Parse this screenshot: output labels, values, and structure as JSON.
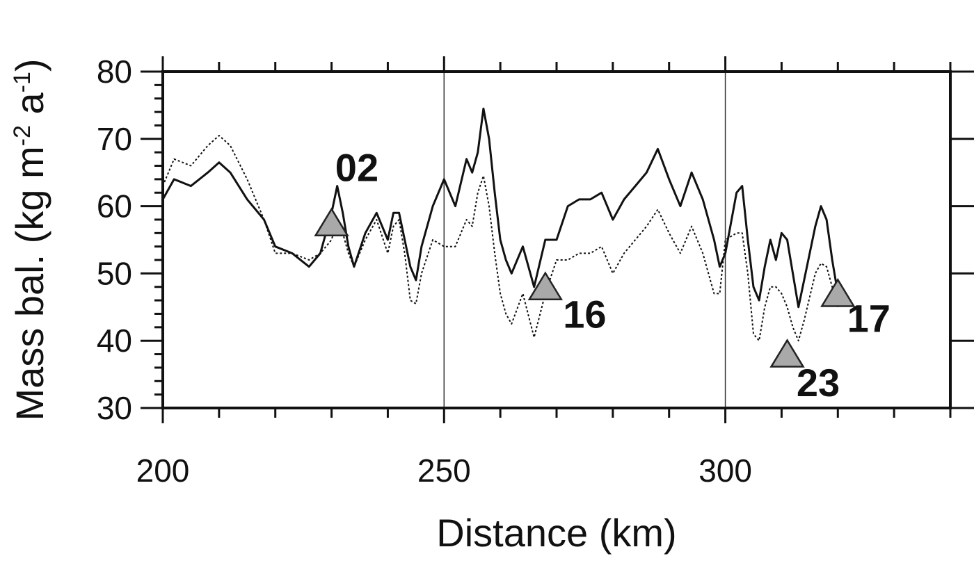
{
  "chart_data": {
    "type": "line",
    "xlabel": "Distance (km)",
    "ylabel_parts": [
      "Mass bal. (kg m",
      "-2",
      " a",
      "-1",
      ")"
    ],
    "xlim": [
      200,
      340
    ],
    "ylim": [
      30,
      80
    ],
    "x_ticks": [
      200,
      250,
      300
    ],
    "y_ticks": [
      30,
      40,
      50,
      60,
      70,
      80
    ],
    "grid_x": [
      250,
      300
    ],
    "series": [
      {
        "style": "solid",
        "points": [
          [
            200,
            61
          ],
          [
            202,
            64
          ],
          [
            205,
            63
          ],
          [
            208,
            65
          ],
          [
            210,
            66.5
          ],
          [
            212,
            65
          ],
          [
            215,
            61
          ],
          [
            218,
            58
          ],
          [
            220,
            54
          ],
          [
            223,
            53
          ],
          [
            226,
            51
          ],
          [
            228,
            53
          ],
          [
            230,
            59
          ],
          [
            231,
            63
          ],
          [
            232,
            59
          ],
          [
            233,
            54
          ],
          [
            234,
            51
          ],
          [
            236,
            56
          ],
          [
            238,
            59
          ],
          [
            240,
            55
          ],
          [
            241,
            59
          ],
          [
            242,
            59
          ],
          [
            243,
            55
          ],
          [
            244,
            51
          ],
          [
            245,
            49
          ],
          [
            246,
            54
          ],
          [
            248,
            60
          ],
          [
            250,
            64
          ],
          [
            252,
            60
          ],
          [
            254,
            67
          ],
          [
            255,
            65
          ],
          [
            256,
            68
          ],
          [
            257,
            74.5
          ],
          [
            258,
            70
          ],
          [
            259,
            62
          ],
          [
            260,
            55
          ],
          [
            261,
            52
          ],
          [
            262,
            50
          ],
          [
            264,
            54
          ],
          [
            266,
            48
          ],
          [
            268,
            55
          ],
          [
            270,
            55
          ],
          [
            272,
            60
          ],
          [
            274,
            61
          ],
          [
            276,
            61
          ],
          [
            278,
            62
          ],
          [
            280,
            58
          ],
          [
            282,
            61
          ],
          [
            284,
            63
          ],
          [
            286,
            65
          ],
          [
            288,
            68.5
          ],
          [
            290,
            64
          ],
          [
            292,
            60
          ],
          [
            294,
            65
          ],
          [
            296,
            61
          ],
          [
            298,
            55
          ],
          [
            299,
            51
          ],
          [
            300,
            53
          ],
          [
            302,
            62
          ],
          [
            303,
            63
          ],
          [
            304,
            55
          ],
          [
            305,
            48
          ],
          [
            306,
            46
          ],
          [
            307,
            51
          ],
          [
            308,
            55
          ],
          [
            309,
            52
          ],
          [
            310,
            56
          ],
          [
            311,
            55
          ],
          [
            312,
            50
          ],
          [
            313,
            45
          ],
          [
            314,
            49
          ],
          [
            316,
            57
          ],
          [
            317,
            60
          ],
          [
            318,
            58
          ],
          [
            319,
            52
          ],
          [
            320,
            47
          ]
        ]
      },
      {
        "style": "dotted",
        "points": [
          [
            200,
            63
          ],
          [
            202,
            67
          ],
          [
            205,
            66
          ],
          [
            208,
            69
          ],
          [
            210,
            70.5
          ],
          [
            212,
            69
          ],
          [
            215,
            64
          ],
          [
            218,
            58
          ],
          [
            220,
            53
          ],
          [
            223,
            53
          ],
          [
            226,
            52
          ],
          [
            228,
            53
          ],
          [
            230,
            55
          ],
          [
            231,
            58
          ],
          [
            232,
            56
          ],
          [
            233,
            53
          ],
          [
            234,
            51
          ],
          [
            236,
            55
          ],
          [
            238,
            58
          ],
          [
            240,
            53
          ],
          [
            241,
            57
          ],
          [
            242,
            58
          ],
          [
            243,
            53
          ],
          [
            244,
            46
          ],
          [
            245,
            45.5
          ],
          [
            246,
            50
          ],
          [
            248,
            55
          ],
          [
            250,
            54
          ],
          [
            252,
            54
          ],
          [
            254,
            58
          ],
          [
            255,
            57
          ],
          [
            256,
            62
          ],
          [
            257,
            64.5
          ],
          [
            258,
            60
          ],
          [
            259,
            53
          ],
          [
            260,
            47
          ],
          [
            261,
            44
          ],
          [
            262,
            42.5
          ],
          [
            264,
            47
          ],
          [
            266,
            40.5
          ],
          [
            268,
            47
          ],
          [
            270,
            52
          ],
          [
            272,
            52
          ],
          [
            274,
            53
          ],
          [
            276,
            53
          ],
          [
            278,
            54
          ],
          [
            280,
            50
          ],
          [
            282,
            53
          ],
          [
            284,
            55
          ],
          [
            286,
            57
          ],
          [
            288,
            59.5
          ],
          [
            290,
            56
          ],
          [
            292,
            53
          ],
          [
            294,
            57
          ],
          [
            296,
            53
          ],
          [
            298,
            47
          ],
          [
            299,
            47
          ],
          [
            300,
            55
          ],
          [
            302,
            56
          ],
          [
            303,
            56
          ],
          [
            304,
            50
          ],
          [
            305,
            41
          ],
          [
            306,
            40
          ],
          [
            307,
            45
          ],
          [
            308,
            48
          ],
          [
            309,
            48
          ],
          [
            310,
            47
          ],
          [
            311,
            45
          ],
          [
            312,
            42
          ],
          [
            313,
            40
          ],
          [
            314,
            43
          ],
          [
            316,
            50
          ],
          [
            317,
            51.5
          ],
          [
            318,
            51
          ],
          [
            319,
            48
          ],
          [
            320,
            45
          ]
        ]
      }
    ],
    "markers": [
      {
        "label": "02",
        "x": 230,
        "y": 57.5,
        "label_x": 234.5,
        "label_y": 65.8
      },
      {
        "label": "16",
        "x": 268,
        "y": 48,
        "label_x": 275,
        "label_y": 44
      },
      {
        "label": "23",
        "x": 311,
        "y": 38,
        "label_x": 316.5,
        "label_y": 33.8
      },
      {
        "label": "17",
        "x": 320,
        "y": 47,
        "label_x": 325.5,
        "label_y": 43.4
      }
    ],
    "colors": {
      "axis": "#111111",
      "line": "#111111",
      "marker_fill": "#a9a9a9",
      "grid": "#333333"
    }
  }
}
